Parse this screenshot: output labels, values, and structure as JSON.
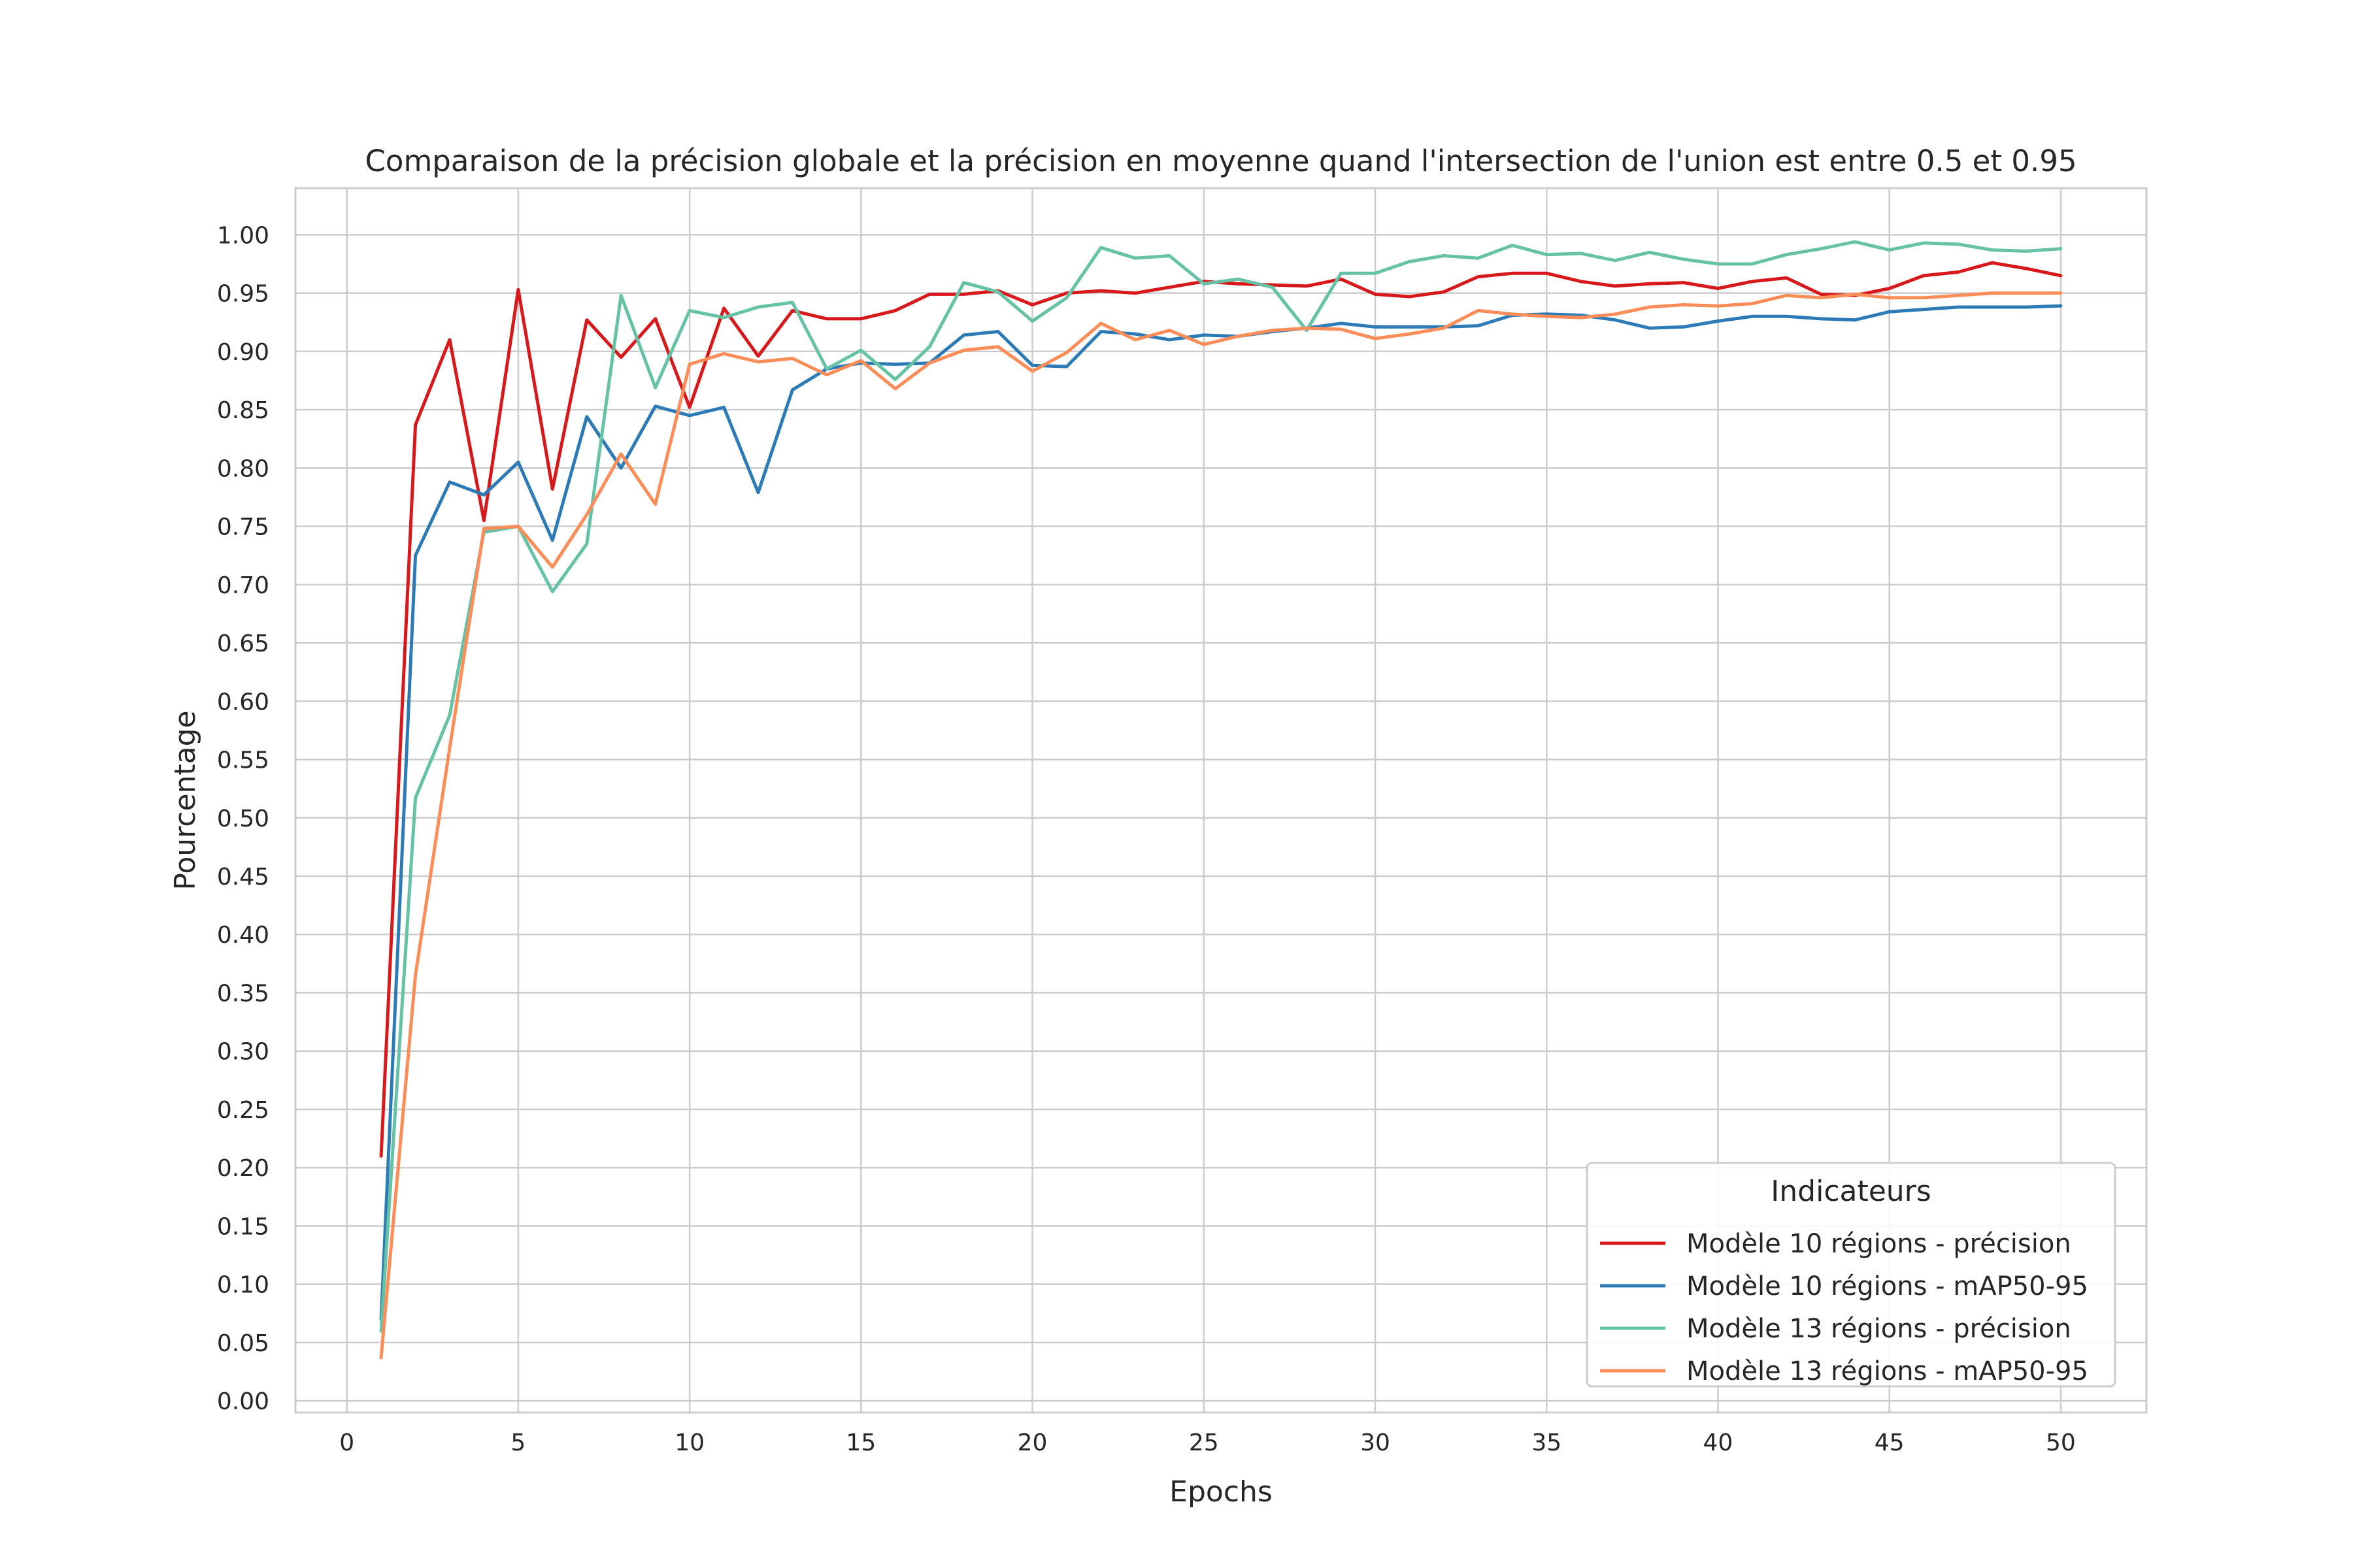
{
  "chart_data": {
    "type": "line",
    "title": "Comparaison de la précision globale et la précision en moyenne quand l'intersection de l'union est entre 0.5 et 0.95",
    "xlabel": "Epochs",
    "ylabel": "Pourcentage",
    "xlim": [
      -1.5,
      52.5
    ],
    "ylim": [
      -0.01,
      1.04
    ],
    "xticks": [
      0,
      5,
      10,
      15,
      20,
      25,
      30,
      35,
      40,
      45,
      50
    ],
    "yticks": [
      0.0,
      0.05,
      0.1,
      0.15,
      0.2,
      0.25,
      0.3,
      0.35,
      0.4,
      0.45,
      0.5,
      0.55,
      0.6,
      0.65,
      0.7,
      0.75,
      0.8,
      0.85,
      0.9,
      0.95,
      1.0
    ],
    "xtick_labels": [
      "0",
      "5",
      "10",
      "15",
      "20",
      "25",
      "30",
      "35",
      "40",
      "45",
      "50"
    ],
    "ytick_labels": [
      "0.00",
      "0.05",
      "0.10",
      "0.15",
      "0.20",
      "0.25",
      "0.30",
      "0.35",
      "0.40",
      "0.45",
      "0.50",
      "0.55",
      "0.60",
      "0.65",
      "0.70",
      "0.75",
      "0.80",
      "0.85",
      "0.90",
      "0.95",
      "1.00"
    ],
    "grid": true,
    "legend": {
      "title": "Indicateurs",
      "placement": "lower-right"
    },
    "x": [
      1,
      2,
      3,
      4,
      5,
      6,
      7,
      8,
      9,
      10,
      11,
      12,
      13,
      14,
      15,
      16,
      17,
      18,
      19,
      20,
      21,
      22,
      23,
      24,
      25,
      26,
      27,
      28,
      29,
      30,
      31,
      32,
      33,
      34,
      35,
      36,
      37,
      38,
      39,
      40,
      41,
      42,
      43,
      44,
      45,
      46,
      47,
      48,
      49,
      50
    ],
    "series": [
      {
        "name": "Modèle 10 régions - précision",
        "color": "#d7191c",
        "values": [
          0.21,
          0.837,
          0.91,
          0.755,
          0.953,
          0.782,
          0.927,
          0.895,
          0.928,
          0.852,
          0.937,
          0.896,
          0.935,
          0.928,
          0.928,
          0.935,
          0.949,
          0.949,
          0.952,
          0.94,
          0.95,
          0.952,
          0.95,
          0.955,
          0.96,
          0.958,
          0.957,
          0.956,
          0.962,
          0.949,
          0.947,
          0.951,
          0.964,
          0.967,
          0.967,
          0.96,
          0.956,
          0.958,
          0.959,
          0.954,
          0.96,
          0.963,
          0.949,
          0.948,
          0.954,
          0.965,
          0.968,
          0.976,
          0.971,
          0.965
        ]
      },
      {
        "name": "Modèle 10 régions - mAP50-95",
        "color": "#2c7bb6",
        "values": [
          0.07,
          0.725,
          0.788,
          0.777,
          0.805,
          0.738,
          0.844,
          0.8,
          0.853,
          0.845,
          0.852,
          0.779,
          0.867,
          0.885,
          0.89,
          0.889,
          0.89,
          0.914,
          0.917,
          0.888,
          0.887,
          0.917,
          0.915,
          0.91,
          0.914,
          0.913,
          0.917,
          0.92,
          0.924,
          0.921,
          0.921,
          0.921,
          0.922,
          0.931,
          0.932,
          0.931,
          0.927,
          0.92,
          0.921,
          0.926,
          0.93,
          0.93,
          0.928,
          0.927,
          0.934,
          0.936,
          0.938,
          0.938,
          0.938,
          0.939
        ]
      },
      {
        "name": "Modèle 13 régions - précision",
        "color": "#66c2a5",
        "values": [
          0.06,
          0.517,
          0.588,
          0.745,
          0.75,
          0.694,
          0.735,
          0.948,
          0.869,
          0.935,
          0.929,
          0.938,
          0.942,
          0.885,
          0.901,
          0.876,
          0.904,
          0.959,
          0.951,
          0.926,
          0.946,
          0.989,
          0.98,
          0.982,
          0.958,
          0.962,
          0.955,
          0.918,
          0.967,
          0.967,
          0.977,
          0.982,
          0.98,
          0.991,
          0.983,
          0.984,
          0.978,
          0.985,
          0.979,
          0.975,
          0.975,
          0.983,
          0.988,
          0.994,
          0.987,
          0.993,
          0.992,
          0.987,
          0.986,
          0.988
        ]
      },
      {
        "name": "Modèle 13 régions - mAP50-95",
        "color": "#fc8d59",
        "values": [
          0.037,
          0.365,
          0.56,
          0.748,
          0.75,
          0.715,
          0.76,
          0.812,
          0.769,
          0.889,
          0.898,
          0.891,
          0.894,
          0.88,
          0.892,
          0.868,
          0.89,
          0.901,
          0.904,
          0.883,
          0.899,
          0.924,
          0.91,
          0.918,
          0.906,
          0.913,
          0.918,
          0.92,
          0.919,
          0.911,
          0.915,
          0.92,
          0.935,
          0.932,
          0.93,
          0.929,
          0.932,
          0.938,
          0.94,
          0.939,
          0.941,
          0.948,
          0.946,
          0.949,
          0.946,
          0.946,
          0.948,
          0.95,
          0.95,
          0.95
        ]
      }
    ]
  }
}
